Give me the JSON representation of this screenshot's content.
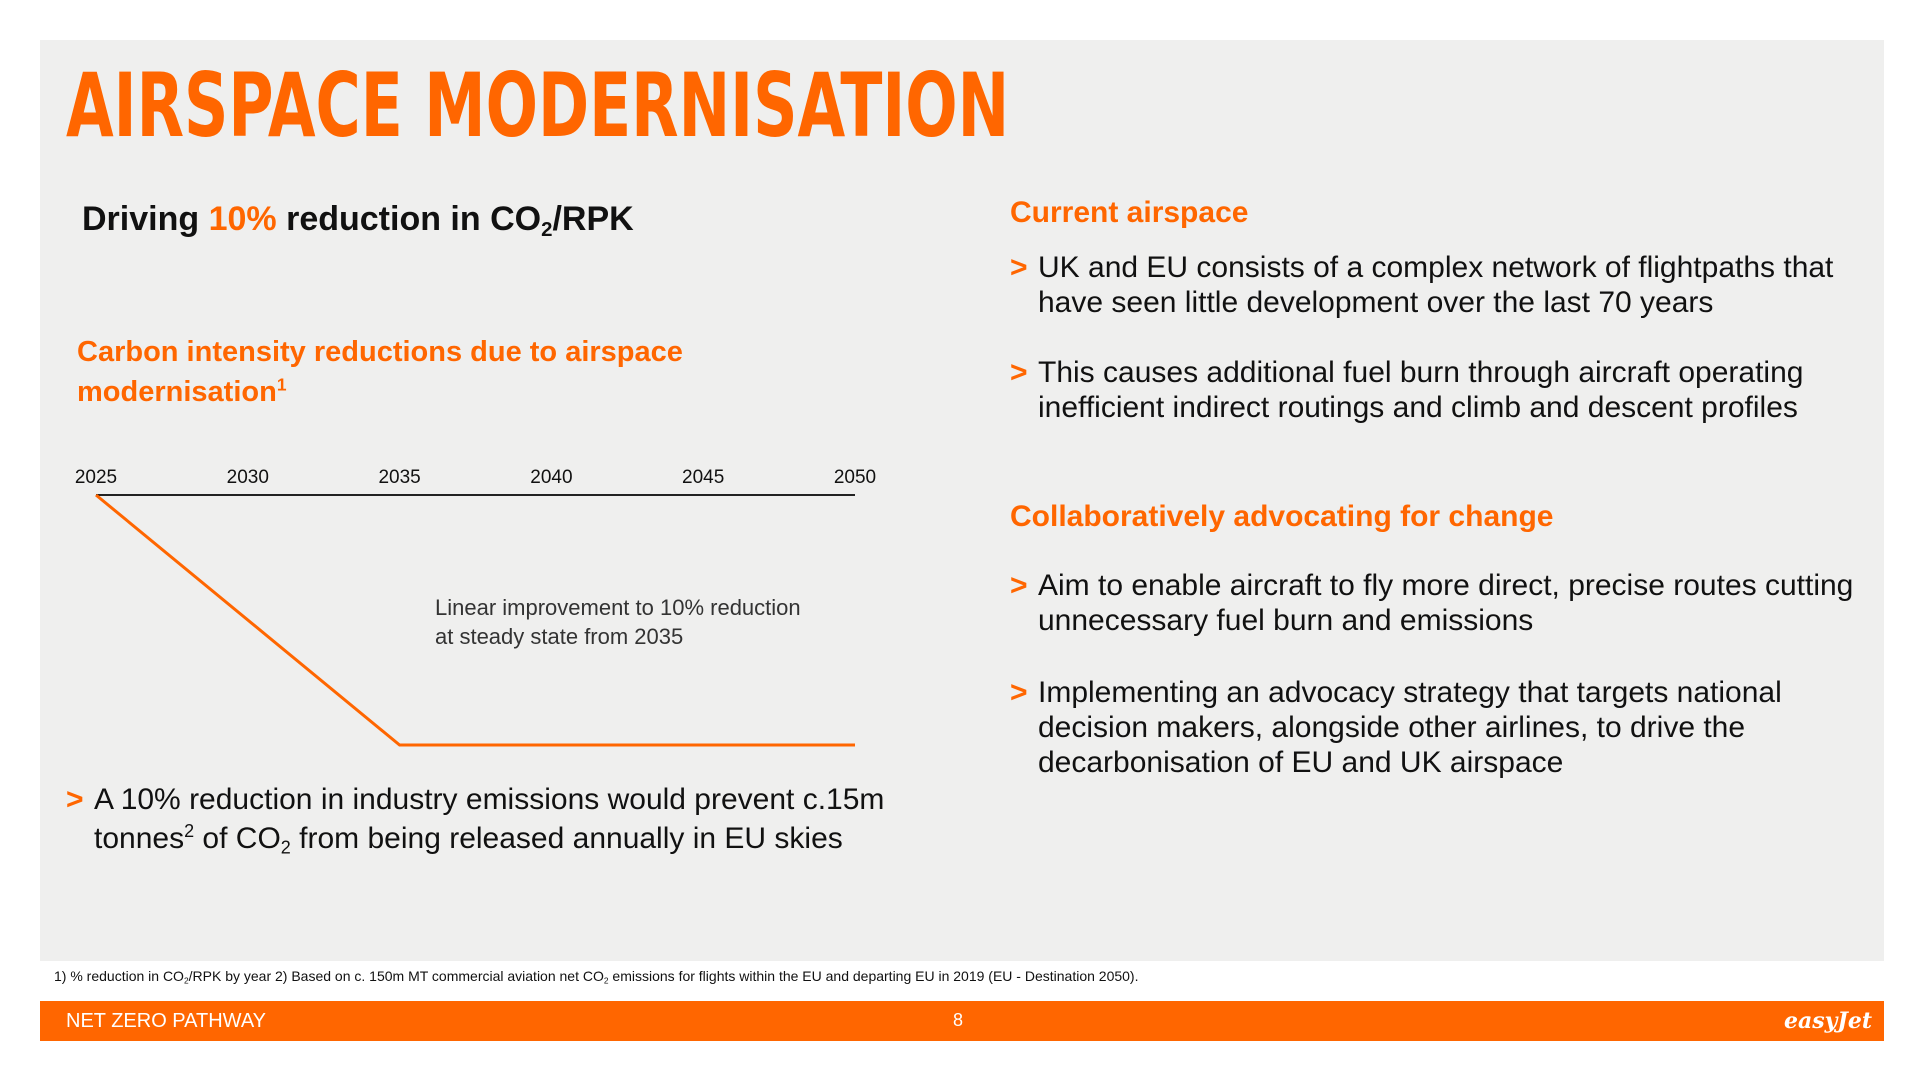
{
  "title": "AIRSPACE MODERNISATION",
  "headline": {
    "pre": "Driving ",
    "highlight": "10%",
    "post": " reduction in CO",
    "sub": "2",
    "tail": "/RPK"
  },
  "chart_title": {
    "text": "Carbon intensity reductions due to airspace modernisation",
    "sup": "1"
  },
  "chart_data": {
    "type": "line",
    "title": "Carbon intensity reductions due to airspace modernisation",
    "xlabel": "",
    "ylabel": "",
    "x_ticks": [
      "2025",
      "2030",
      "2035",
      "2040",
      "2045",
      "2050"
    ],
    "xlim": [
      2025,
      2050
    ],
    "ylim": [
      -10,
      0
    ],
    "series": [
      {
        "x": [
          2025,
          2035,
          2050
        ],
        "y": [
          0,
          -10,
          -10
        ]
      }
    ],
    "annotation": [
      "Linear improvement to 10% reduction",
      "at steady state from 2035"
    ],
    "line_color": "#ff6600",
    "grid": false
  },
  "left_bullet": {
    "line1": "A 10% reduction in industry emissions would prevent c.15m",
    "line2_pre": "tonnes",
    "line2_sup": "2",
    "line2_mid": " of CO",
    "line2_sub": "2",
    "line2_post": " from being released annually in EU skies"
  },
  "right": {
    "section1": {
      "heading": "Current airspace",
      "bullets": [
        "UK and EU consists of a complex network of flightpaths that have seen little development over the last 70 years",
        "This causes additional fuel burn through aircraft operating inefficient indirect routings and climb and descent profiles"
      ]
    },
    "section2": {
      "heading": "Collaboratively advocating for change",
      "bullets": [
        "Aim to enable aircraft to fly more direct, precise routes cutting unnecessary fuel burn and emissions",
        "Implementing an advocacy strategy that targets national decision makers, alongside other airlines, to drive the decarbonisation of EU and UK airspace"
      ]
    }
  },
  "bullet_marker": ">",
  "footnote": {
    "a": "1) % reduction in CO",
    "a_sub": "2",
    "b": "/RPK by year 2) Based on c. 150m MT commercial aviation net CO",
    "b_sub": "2",
    "c": " emissions for flights within the EU and departing EU in 2019 (EU - Destination 2050)."
  },
  "footer": {
    "label": "NET ZERO PATHWAY",
    "page": "8",
    "logo": "easyJet"
  },
  "colors": {
    "brand": "#ff6600",
    "panel": "#efefee"
  }
}
